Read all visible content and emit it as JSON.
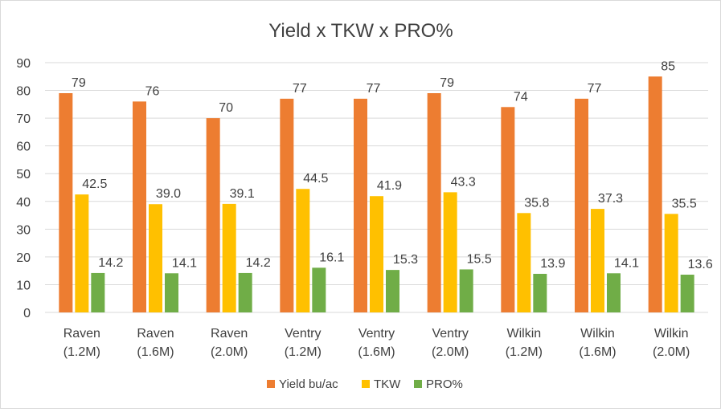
{
  "chart_data": {
    "type": "bar",
    "title": "Yield x TKW x PRO%",
    "xlabel": "",
    "ylabel": "",
    "ylim": [
      0,
      90
    ],
    "yticks": [
      0,
      10,
      20,
      30,
      40,
      50,
      60,
      70,
      80,
      90
    ],
    "grid": true,
    "legend_position": "bottom",
    "categories": [
      [
        "Raven",
        "(1.2M)"
      ],
      [
        "Raven",
        "(1.6M)"
      ],
      [
        "Raven",
        "(2.0M)"
      ],
      [
        "Ventry",
        "(1.2M)"
      ],
      [
        "Ventry",
        "(1.6M)"
      ],
      [
        "Ventry",
        "(2.0M)"
      ],
      [
        "Wilkin",
        "(1.2M)"
      ],
      [
        "Wilkin",
        "(1.6M)"
      ],
      [
        "Wilkin",
        "(2.0M)"
      ]
    ],
    "series": [
      {
        "name": "Yield bu/ac",
        "color": "#ed7d31",
        "values": [
          79,
          76,
          70,
          77,
          77,
          79,
          74,
          77,
          85
        ],
        "labels": [
          "79",
          "76",
          "70",
          "77",
          "77",
          "79",
          "74",
          "77",
          "85"
        ]
      },
      {
        "name": "TKW",
        "color": "#ffc000",
        "values": [
          42.5,
          39.0,
          39.1,
          44.5,
          41.9,
          43.3,
          35.8,
          37.3,
          35.5
        ],
        "labels": [
          "42.5",
          "39.0",
          "39.1",
          "44.5",
          "41.9",
          "43.3",
          "35.8",
          "37.3",
          "35.5"
        ]
      },
      {
        "name": "PRO%",
        "color": "#70ad47",
        "values": [
          14.2,
          14.1,
          14.2,
          16.1,
          15.3,
          15.5,
          13.9,
          14.1,
          13.6
        ],
        "labels": [
          "14.2",
          "14.1",
          "14.2",
          "16.1",
          "15.3",
          "15.5",
          "13.9",
          "14.1",
          "13.6"
        ]
      }
    ]
  }
}
